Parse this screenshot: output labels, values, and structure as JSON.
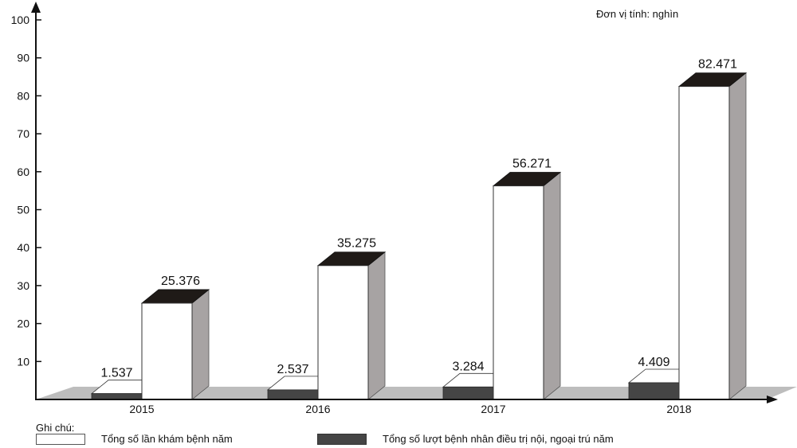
{
  "chart_data": {
    "type": "bar",
    "unit_note": "Đơn vị tính: nghìn",
    "categories": [
      "2015",
      "2016",
      "2017",
      "2018"
    ],
    "series": [
      {
        "name": "Tổng số lần khám bệnh năm",
        "values": [
          25.376,
          35.275,
          56.271,
          82.471
        ],
        "labels": [
          "25.376",
          "35.275",
          "56.271",
          "82.471"
        ],
        "color": "#ffffff"
      },
      {
        "name": "Tổng số lượt bệnh nhân điều trị nội, ngoại trú năm",
        "values": [
          1.537,
          2.537,
          3.284,
          4.409
        ],
        "labels": [
          "1.537",
          "2.537",
          "3.284",
          "4.409"
        ],
        "color": "#454545"
      }
    ],
    "yticks": [
      "10",
      "20",
      "30",
      "40",
      "50",
      "60",
      "70",
      "80",
      "90",
      "100"
    ],
    "ylim": [
      0,
      100
    ],
    "grid": false,
    "legend_title": "Ghi chú:",
    "legend_position": "bottom-left",
    "colors": {
      "bar_top": "#1f1a17",
      "bar_side": "#a7a3a3",
      "floor": "#bdbdbd",
      "axis": "#111111"
    }
  }
}
